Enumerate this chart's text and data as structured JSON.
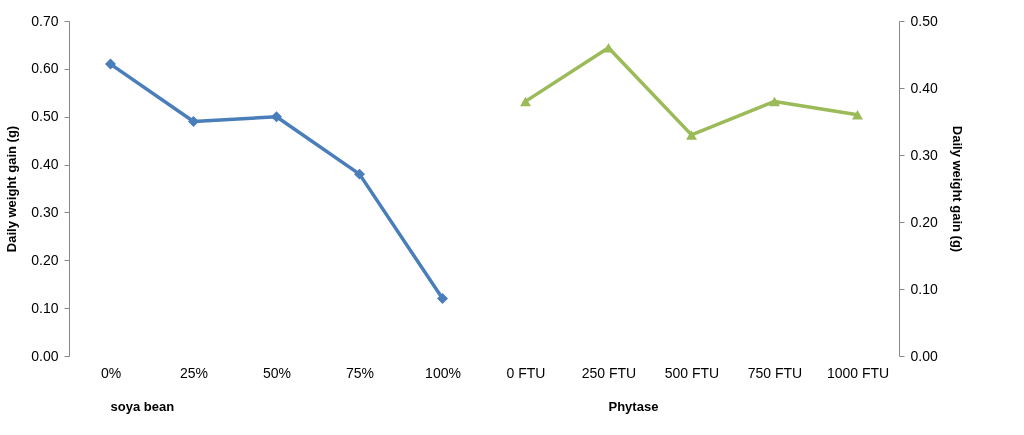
{
  "chart_data": {
    "type": "line",
    "categories": [
      "0%",
      "25%",
      "50%",
      "75%",
      "100%",
      "0 FTU",
      "250 FTU",
      "500 FTU",
      "750 FTU",
      "1000 FTU"
    ],
    "series": [
      {
        "color": "#4a7ebb",
        "marker": "diamond",
        "values": [
          0.61,
          0.49,
          0.5,
          0.38,
          0.12,
          null,
          null,
          null,
          null,
          null
        ]
      },
      {
        "color": "#9bbb59",
        "marker": "triangle",
        "axis": "y2",
        "values": [
          null,
          null,
          null,
          null,
          null,
          0.38,
          0.46,
          0.33,
          0.38,
          0.36
        ]
      }
    ],
    "ylabel": "Daily weight gain (g)",
    "y2label": "Daily weight gain (g)",
    "ylim": [
      0,
      0.7
    ],
    "yticks": [
      {
        "value": 0,
        "label": "0.00"
      },
      {
        "value": 0.1,
        "label": "0.10"
      },
      {
        "value": 0.2,
        "label": "0.20"
      },
      {
        "value": 0.3,
        "label": "0.30"
      },
      {
        "value": 0.4,
        "label": "0.40"
      },
      {
        "value": 0.5,
        "label": "0.50"
      },
      {
        "value": 0.6,
        "label": "0.60"
      },
      {
        "value": 0.7,
        "label": "0.70"
      }
    ],
    "y2lim": [
      0,
      0.5
    ],
    "y2ticks": [
      {
        "value": 0,
        "label": "0.00"
      },
      {
        "value": 0.1,
        "label": "0.10"
      },
      {
        "value": 0.2,
        "label": "0.20"
      },
      {
        "value": 0.3,
        "label": "0.30"
      },
      {
        "value": 0.4,
        "label": "0.40"
      },
      {
        "value": 0.5,
        "label": "0.50"
      }
    ],
    "annotations": [
      "soya bean",
      "Phytase"
    ],
    "line_style": "solid"
  }
}
